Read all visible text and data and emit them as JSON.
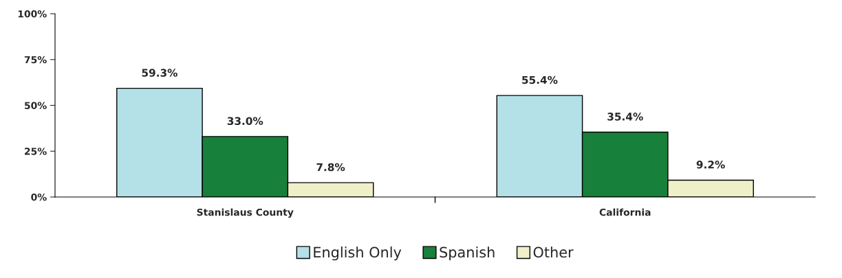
{
  "chart_data": {
    "type": "bar",
    "categories": [
      "Stanislaus County",
      "California"
    ],
    "series": [
      {
        "name": "English Only",
        "color": "#b4e0e8",
        "values": [
          59.3,
          55.4
        ],
        "value_labels": [
          "59.3%",
          "55.4%"
        ]
      },
      {
        "name": "Spanish",
        "color": "#17803a",
        "values": [
          33.0,
          35.4
        ],
        "value_labels": [
          "33.0%",
          "35.4%"
        ]
      },
      {
        "name": "Other",
        "color": "#f0f0c8",
        "values": [
          7.8,
          9.2
        ],
        "value_labels": [
          "7.8%",
          "9.2%"
        ]
      }
    ],
    "ylim": [
      0,
      100
    ],
    "yticks": [
      {
        "value": 0,
        "label": "0%"
      },
      {
        "value": 25,
        "label": "25%"
      },
      {
        "value": 50,
        "label": "50%"
      },
      {
        "value": 75,
        "label": "75%"
      },
      {
        "value": 100,
        "label": "100%"
      }
    ],
    "grid": false,
    "legend": "bottom"
  }
}
